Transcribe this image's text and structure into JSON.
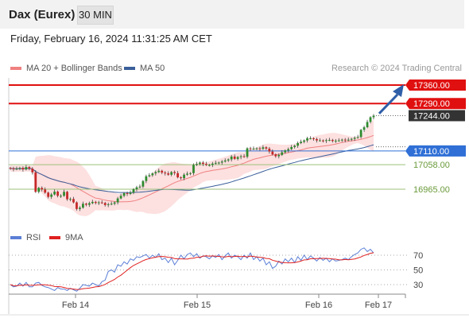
{
  "header": {
    "title": "Dax (Eurex)",
    "timeframe": "30 MIN"
  },
  "timestamp": "Friday, February 16, 2024 11:31:25 AM CET",
  "legend": {
    "ma20": "MA 20 + Bollinger Bands",
    "ma50": "MA 50"
  },
  "credit": "Research © 2024 Trading Central",
  "sub_legend": {
    "rsi": "RSI",
    "ma9": "9MA"
  },
  "colors": {
    "resistance": "#e01010",
    "support": "#2f6fd6",
    "target": "#6a9a3a",
    "pivot": "#333333",
    "ma20": "#f08080",
    "ma50": "#3a5f9a",
    "band": "#fde0e0",
    "arrow": "#2f5fa8",
    "rsi": "#5b7fd6",
    "ma9": "#e02020"
  },
  "chart_data": [
    {
      "type": "candlestick",
      "title": "Dax (Eurex)",
      "x_labels": [
        "Feb 14",
        "Feb 15",
        "Feb 16",
        "Feb 17"
      ],
      "ylim": [
        16840,
        17400
      ],
      "levels": [
        {
          "value": 17360,
          "label": "17360.00",
          "kind": "resistance"
        },
        {
          "value": 17290,
          "label": "17290.00",
          "kind": "resistance"
        },
        {
          "value": 17244,
          "label": "17244.00",
          "kind": "pivot"
        },
        {
          "value": 17110,
          "label": "17110.00",
          "kind": "support"
        },
        {
          "value": 17058,
          "label": "17058.00",
          "kind": "target"
        },
        {
          "value": 16965,
          "label": "16965.00",
          "kind": "target"
        }
      ],
      "closes": [
        17044,
        17041,
        17043,
        17046,
        17040,
        17049,
        17043,
        17029,
        16955,
        16970,
        16964,
        16952,
        16936,
        16945,
        16956,
        16940,
        16940,
        16955,
        16927,
        16928,
        16915,
        16890,
        16895,
        16910,
        16906,
        16912,
        16917,
        16913,
        16915,
        16913,
        16905,
        16908,
        16910,
        16915,
        16930,
        16940,
        16950,
        16947,
        16952,
        16965,
        16972,
        16975,
        16996,
        17014,
        17018,
        17025,
        17030,
        17035,
        17028,
        17025,
        17020,
        17030,
        17026,
        17010,
        17007,
        17020,
        17024,
        17026,
        17057,
        17061,
        17066,
        17061,
        17057,
        17057,
        17062,
        17065,
        17066,
        17070,
        17074,
        17078,
        17089,
        17080,
        17087,
        17090,
        17088,
        17120,
        17118,
        17119,
        17120,
        17118,
        17124,
        17119,
        17108,
        17097,
        17090,
        17095,
        17105,
        17112,
        17117,
        17125,
        17130,
        17140,
        17145,
        17150,
        17158,
        17158,
        17155,
        17150,
        17150,
        17148,
        17151,
        17152,
        17148,
        17149,
        17150,
        17153,
        17151,
        17153,
        17156,
        17160,
        17163,
        17190,
        17200,
        17220,
        17238,
        17244
      ],
      "ma20_label": "MA 20 + Bollinger Bands",
      "ma50_label": "MA 50"
    },
    {
      "type": "line",
      "series": [
        {
          "name": "RSI"
        },
        {
          "name": "9MA"
        }
      ],
      "ticks": [
        70,
        50,
        30
      ],
      "ylim": [
        20,
        82
      ],
      "rsi_values": [
        30,
        27,
        28,
        32,
        28,
        33,
        27,
        27,
        32,
        33,
        29,
        27,
        26,
        24,
        22,
        26,
        24,
        24,
        22,
        25,
        23,
        21,
        25,
        30,
        29,
        28,
        32,
        30,
        28,
        34,
        36,
        48,
        50,
        47,
        57,
        55,
        61,
        58,
        65,
        63,
        68,
        67,
        69,
        71,
        66,
        70,
        67,
        72,
        64,
        66,
        60,
        66,
        57,
        63,
        70,
        65,
        71,
        73,
        68,
        72,
        66,
        69,
        68,
        65,
        69,
        67,
        71,
        64,
        69,
        73,
        66,
        70,
        68,
        64,
        70,
        66,
        73,
        64,
        68,
        62,
        66,
        57,
        61,
        52,
        55,
        62,
        58,
        65,
        61,
        66,
        60,
        68,
        63,
        70,
        64,
        69,
        66,
        62,
        67,
        63,
        66,
        61,
        65,
        62,
        63,
        64,
        66,
        64,
        68,
        71,
        73,
        78,
        80,
        75,
        78,
        73
      ]
    }
  ]
}
